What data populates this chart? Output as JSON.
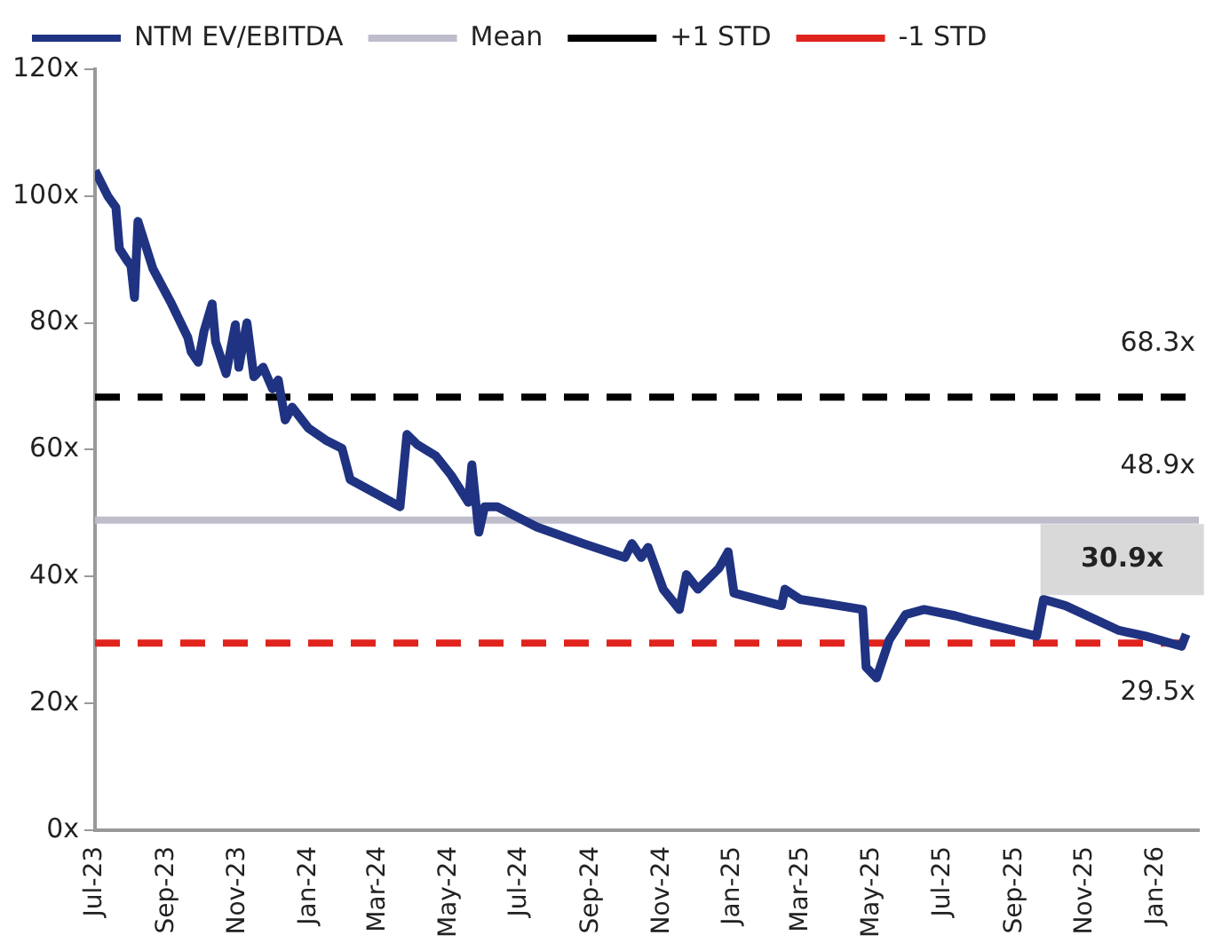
{
  "chart_data": {
    "type": "line",
    "legend": "top",
    "grid": false,
    "marker": "none",
    "line_style": "solid",
    "x": [
      "2023-07-01",
      "2023-07-12",
      "2023-07-19",
      "2023-07-22",
      "2023-07-28",
      "2023-08-01",
      "2023-08-04",
      "2023-08-07",
      "2023-08-20",
      "2023-09-05",
      "2023-09-19",
      "2023-09-22",
      "2023-09-28",
      "2023-10-03",
      "2023-10-10",
      "2023-10-13",
      "2023-10-22",
      "2023-10-30",
      "2023-11-02",
      "2023-11-09",
      "2023-11-15",
      "2023-11-23",
      "2023-12-01",
      "2023-12-06",
      "2023-12-12",
      "2023-12-18",
      "2024-01-01",
      "2024-01-16",
      "2024-01-30",
      "2024-02-06",
      "2024-03-20",
      "2024-03-26",
      "2024-04-04",
      "2024-04-20",
      "2024-05-03",
      "2024-05-18",
      "2024-05-21",
      "2024-05-27",
      "2024-06-01",
      "2024-06-12",
      "2024-07-16",
      "2024-08-25",
      "2024-09-30",
      "2024-10-06",
      "2024-10-14",
      "2024-10-20",
      "2024-11-02",
      "2024-11-16",
      "2024-11-22",
      "2024-12-02",
      "2024-12-20",
      "2024-12-28",
      "2025-01-02",
      "2025-02-12",
      "2025-02-15",
      "2025-02-28",
      "2025-04-23",
      "2025-04-26",
      "2025-05-05",
      "2025-05-16",
      "2025-05-30",
      "2025-06-15",
      "2025-07-12",
      "2025-07-28",
      "2025-09-20",
      "2025-09-26",
      "2025-10-15",
      "2025-11-30",
      "2025-12-23",
      "2026-01-23",
      "2026-01-27"
    ],
    "series": [
      {
        "name": "NTM EV/EBITDA",
        "color": "#1f3382",
        "values": [
          104,
          100,
          98.2,
          91.7,
          90,
          89,
          84,
          96,
          88.5,
          83,
          77.7,
          75.4,
          73.8,
          78.7,
          83,
          77,
          72,
          79.7,
          73,
          80,
          71.5,
          73,
          69.6,
          71,
          64.7,
          66.7,
          63.4,
          61.5,
          60.2,
          55.3,
          51,
          62.4,
          60.8,
          59,
          56,
          51.7,
          57.6,
          47,
          51,
          51,
          47.8,
          45.2,
          43,
          45.2,
          43,
          44.6,
          38,
          34.8,
          40.3,
          38,
          41.3,
          43.9,
          37.4,
          35.4,
          38,
          36.4,
          34.8,
          25.7,
          24,
          30,
          34,
          34.8,
          33.8,
          33,
          30.6,
          36.4,
          35.4,
          31.5,
          30.6,
          29,
          30.9
        ]
      }
    ],
    "xlim": [
      "2023-07-01",
      "2026-02-07"
    ],
    "xticks": [
      {
        "value": "2023-07-01",
        "label": "Jul-23"
      },
      {
        "value": "2023-09-01",
        "label": "Sep-23"
      },
      {
        "value": "2023-11-01",
        "label": "Nov-23"
      },
      {
        "value": "2024-01-01",
        "label": "Jan-24"
      },
      {
        "value": "2024-03-01",
        "label": "Mar-24"
      },
      {
        "value": "2024-05-01",
        "label": "May-24"
      },
      {
        "value": "2024-07-01",
        "label": "Jul-24"
      },
      {
        "value": "2024-09-01",
        "label": "Sep-24"
      },
      {
        "value": "2024-11-01",
        "label": "Nov-24"
      },
      {
        "value": "2025-01-01",
        "label": "Jan-25"
      },
      {
        "value": "2025-03-01",
        "label": "Mar-25"
      },
      {
        "value": "2025-05-01",
        "label": "May-25"
      },
      {
        "value": "2025-07-01",
        "label": "Jul-25"
      },
      {
        "value": "2025-09-01",
        "label": "Sep-25"
      },
      {
        "value": "2025-11-01",
        "label": "Nov-25"
      },
      {
        "value": "2026-01-01",
        "label": "Jan-26"
      }
    ],
    "ylim": [
      0,
      120
    ],
    "yticks": [
      {
        "value": 0,
        "label": "0x"
      },
      {
        "value": 20,
        "label": "20x"
      },
      {
        "value": 40,
        "label": "40x"
      },
      {
        "value": 60,
        "label": "60x"
      },
      {
        "value": 80,
        "label": "80x"
      },
      {
        "value": 100,
        "label": "100x"
      },
      {
        "value": 120,
        "label": "120x"
      }
    ],
    "ref_lines": [
      {
        "axis": "y",
        "value": 48.9,
        "label": "Mean",
        "color": "#bebdcc",
        "line_style": "solid"
      },
      {
        "axis": "y",
        "value": 68.3,
        "label": "+1 STD",
        "color": "#000000",
        "line_style": "dashed"
      },
      {
        "axis": "y",
        "value": 29.5,
        "label": "-1 STD",
        "color": "#e0231c",
        "line_style": "dashed"
      }
    ],
    "annotations": [
      {
        "text": "68.3x",
        "x": "2026-02-07",
        "y": 68.3
      },
      {
        "text": "48.9x",
        "x": "2026-02-07",
        "y": 48.9
      },
      {
        "text": "29.5x",
        "x": "2026-02-07",
        "y": 29.5
      },
      {
        "text": "30.9x",
        "x": "2026-01-27",
        "y": 30.9
      }
    ]
  }
}
